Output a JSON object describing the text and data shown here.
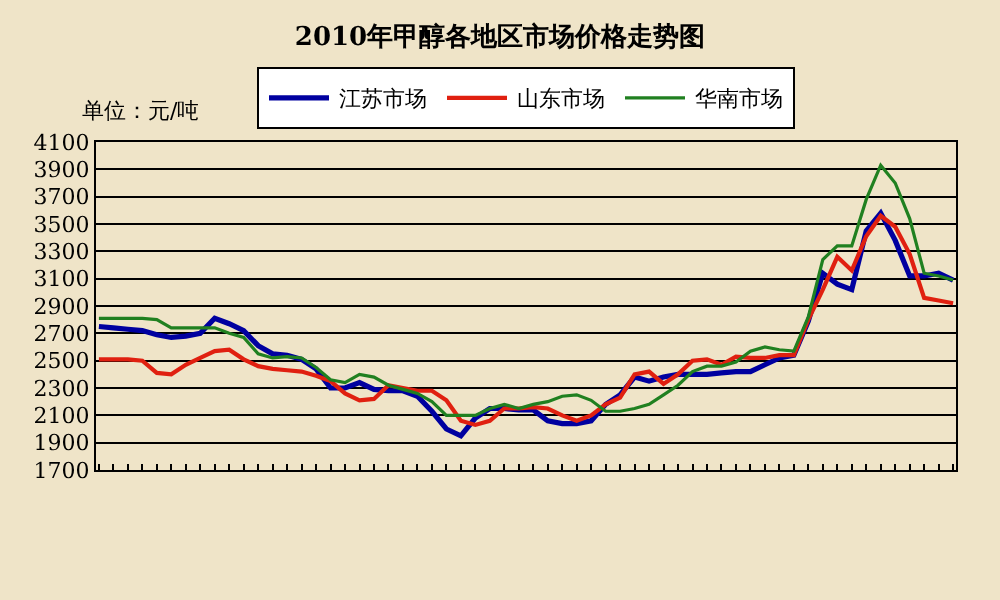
{
  "chart_data": {
    "type": "line",
    "title": "2010年甲醇各地区市场价格走势图",
    "annotations": [
      "单位：元/吨"
    ],
    "categories": [
      null,
      null,
      null,
      null,
      null,
      null,
      null,
      null,
      null,
      null,
      null,
      null,
      null,
      null,
      null,
      null,
      null,
      null,
      null,
      null,
      null,
      null,
      null,
      null,
      null,
      null,
      null,
      null,
      null,
      null,
      null,
      null,
      null,
      null,
      null,
      null,
      null,
      null,
      null,
      null,
      null,
      null,
      null,
      null,
      null,
      null,
      null,
      null,
      null,
      null,
      null,
      null,
      null,
      null,
      null,
      null,
      null,
      null,
      null,
      null
    ],
    "series": [
      {
        "name": "江苏市场",
        "color": "#0000a0",
        "values": [
          2750,
          2740,
          2730,
          2720,
          2690,
          2670,
          2680,
          2700,
          2810,
          2770,
          2720,
          2610,
          2550,
          2540,
          2510,
          2440,
          2300,
          2300,
          2340,
          2290,
          2280,
          2280,
          2240,
          2130,
          2000,
          1950,
          2080,
          2150,
          2150,
          2140,
          2140,
          2060,
          2040,
          2040,
          2060,
          2180,
          2250,
          2380,
          2350,
          2380,
          2400,
          2400,
          2400,
          2410,
          2420,
          2420,
          2470,
          2520,
          2540,
          2790,
          3140,
          3060,
          3020,
          3450,
          3580,
          3380,
          3120,
          3120,
          3140,
          3090
        ]
      },
      {
        "name": "山东市场",
        "color": "#e02010",
        "values": [
          2510,
          2510,
          2510,
          2500,
          2410,
          2400,
          2470,
          2520,
          2570,
          2580,
          2510,
          2460,
          2440,
          2430,
          2420,
          2390,
          2350,
          2260,
          2210,
          2220,
          2320,
          2300,
          2280,
          2280,
          2210,
          2060,
          2030,
          2060,
          2150,
          2150,
          2160,
          2150,
          2100,
          2060,
          2100,
          2180,
          2230,
          2400,
          2420,
          2330,
          2400,
          2500,
          2510,
          2470,
          2530,
          2520,
          2520,
          2540,
          2540,
          2800,
          3020,
          3260,
          3160,
          3410,
          3560,
          3480,
          3280,
          2960,
          2940,
          2920
        ]
      },
      {
        "name": "华南市场",
        "color": "#208020",
        "values": [
          2810,
          2810,
          2810,
          2810,
          2800,
          2740,
          2740,
          2740,
          2740,
          2700,
          2670,
          2550,
          2520,
          2530,
          2520,
          2450,
          2360,
          2340,
          2400,
          2380,
          2320,
          2290,
          2260,
          2200,
          2100,
          2100,
          2100,
          2150,
          2180,
          2150,
          2180,
          2200,
          2240,
          2250,
          2210,
          2130,
          2130,
          2150,
          2180,
          2250,
          2320,
          2420,
          2460,
          2460,
          2490,
          2570,
          2600,
          2580,
          2570,
          2820,
          3240,
          3340,
          3340,
          3680,
          3930,
          3800,
          3540,
          3140,
          3120,
          3090
        ]
      }
    ],
    "ylim": [
      1700,
      4100
    ],
    "yticks": [
      1700,
      1900,
      2100,
      2300,
      2500,
      2700,
      2900,
      3100,
      3300,
      3500,
      3700,
      3900,
      4100
    ],
    "grid": "y",
    "legend": "top",
    "tick_labels": "y",
    "marker": "none",
    "line_style": "solid"
  }
}
